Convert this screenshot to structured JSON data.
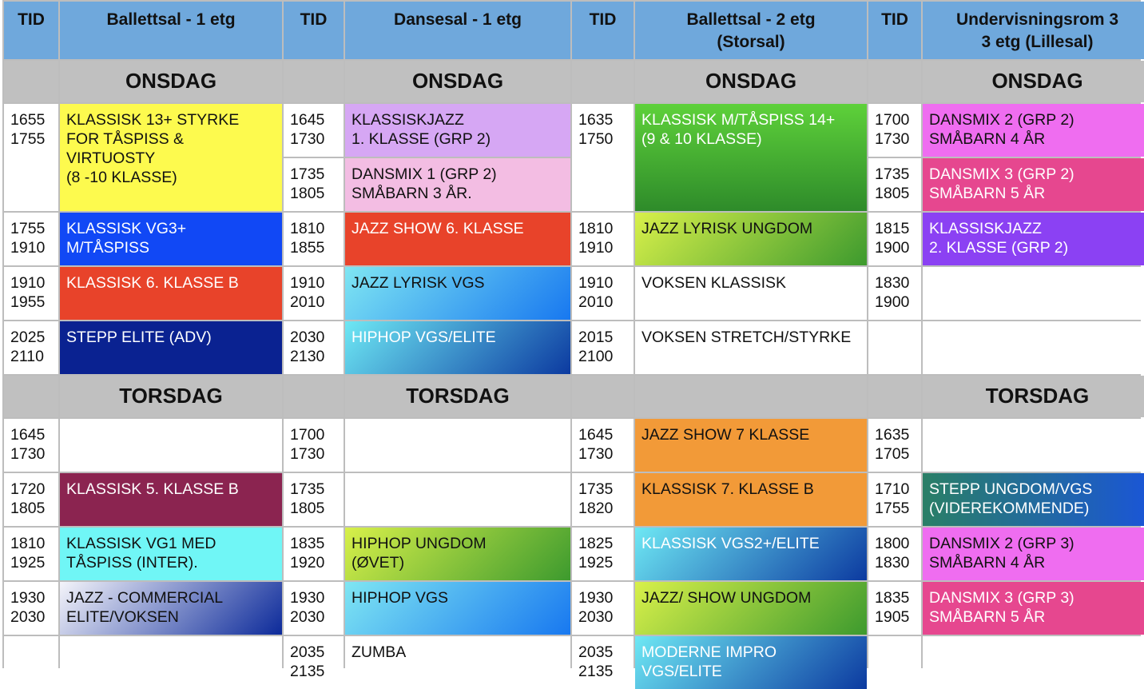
{
  "headers": [
    {
      "text": "TID"
    },
    {
      "text": "Ballettsal - 1 etg"
    },
    {
      "text": "TID"
    },
    {
      "text": "Dansesal - 1 etg"
    },
    {
      "text": "TID"
    },
    {
      "text": "Ballettsal - 2 etg\n(Storsal)"
    },
    {
      "text": "TID"
    },
    {
      "text": "Undervisningsrom 3\n3 etg (Lillesal)"
    }
  ],
  "days": {
    "wed": "ONSDAG",
    "thu": "TORSDAG"
  },
  "cells": [
    {
      "id": "w1-t",
      "text": "1655\n1755",
      "r": 3,
      "c": 1,
      "rs": 2
    },
    {
      "id": "w1-a",
      "text": "KLASSISK 13+  STYRKE\nFOR TÅSPISS &\nVIRTUOSTY\n(8 -10 KLASSE)",
      "r": 3,
      "c": 2,
      "rs": 2,
      "bg": "#fdfa4e"
    },
    {
      "id": "w1-t2",
      "text": "1645\n1730",
      "r": 3,
      "c": 3
    },
    {
      "id": "w1-b",
      "text": "KLASSISKJAZZ\n1. KLASSE  (GRP 2)",
      "r": 3,
      "c": 4,
      "bg": "#d6a7f4"
    },
    {
      "id": "w1-t3",
      "text": "1635\n1750",
      "r": 3,
      "c": 5,
      "rs": 2
    },
    {
      "id": "w1-c",
      "text": "KLASSISK M/TÅSPISS 14+\n(9 & 10 KLASSE)",
      "r": 3,
      "c": 6,
      "rs": 2,
      "bg": "linear-gradient(180deg,#5ed13a,#2e8b2a)",
      "w": 1
    },
    {
      "id": "w1-t4",
      "text": "1700\n1730",
      "r": 3,
      "c": 7
    },
    {
      "id": "w1-d",
      "text": "DANSMIX 2 (GRP 2)\nSMÅBARN 4 ÅR",
      "r": 3,
      "c": 8,
      "bg": "#ef6df0"
    },
    {
      "id": "w2-t2",
      "text": "1735\n1805",
      "r": 4,
      "c": 3
    },
    {
      "id": "w2-b",
      "text": "DANSMIX 1 (GRP 2)\nSMÅBARN 3 ÅR.",
      "r": 4,
      "c": 4,
      "bg": "#f3bde3"
    },
    {
      "id": "w2-t4",
      "text": "1735\n1805",
      "r": 4,
      "c": 7
    },
    {
      "id": "w2-d",
      "text": "DANSMIX 3  (GRP 2)\nSMÅBARN 5 ÅR",
      "r": 4,
      "c": 8,
      "bg": "#e6478f",
      "w": 1
    },
    {
      "id": "w3-t",
      "text": "1755\n1910",
      "r": 5,
      "c": 1
    },
    {
      "id": "w3-a",
      "text": "KLASSISK  VG3+\nM/TÅSPISS",
      "r": 5,
      "c": 2,
      "bg": "#1148f5",
      "w": 1
    },
    {
      "id": "w3-t2",
      "text": "1810\n1855",
      "r": 5,
      "c": 3
    },
    {
      "id": "w3-b",
      "text": "JAZZ SHOW 6. KLASSE",
      "r": 5,
      "c": 4,
      "bg": "#e8432a",
      "w": 1
    },
    {
      "id": "w3-t3",
      "text": "1810\n1910",
      "r": 5,
      "c": 5
    },
    {
      "id": "w3-c",
      "text": "JAZZ LYRISK UNGDOM",
      "r": 5,
      "c": 6,
      "bg": "linear-gradient(135deg,#d8f04a,#3d9a2e)"
    },
    {
      "id": "w3-t4",
      "text": "1815\n1900",
      "r": 5,
      "c": 7
    },
    {
      "id": "w3-d",
      "text": "KLASSISKJAZZ\n2. KLASSE  (GRP 2)",
      "r": 5,
      "c": 8,
      "bg": "#8b41f3",
      "w": 1
    },
    {
      "id": "w4-t",
      "text": "1910\n1955",
      "r": 6,
      "c": 1
    },
    {
      "id": "w4-a",
      "text": "KLASSISK 6. KLASSE B",
      "r": 6,
      "c": 2,
      "bg": "#e8432a",
      "w": 1
    },
    {
      "id": "w4-t2",
      "text": "1910\n2010",
      "r": 6,
      "c": 3
    },
    {
      "id": "w4-b",
      "text": "JAZZ LYRISK VGS",
      "r": 6,
      "c": 4,
      "bg": "linear-gradient(135deg,#7fe6f2,#1878f0)"
    },
    {
      "id": "w4-t3",
      "text": "1910\n2010",
      "r": 6,
      "c": 5
    },
    {
      "id": "w4-c",
      "text": "VOKSEN KLASSISK",
      "r": 6,
      "c": 6
    },
    {
      "id": "w4-t4",
      "text": "1830\n1900",
      "r": 6,
      "c": 7
    },
    {
      "id": "w4-d",
      "text": "",
      "r": 6,
      "c": 8
    },
    {
      "id": "w5-t",
      "text": "2025\n2110",
      "r": 7,
      "c": 1
    },
    {
      "id": "w5-a",
      "text": "STEPP ELITE (ADV)",
      "r": 7,
      "c": 2,
      "bg": "#0a2291",
      "w": 1
    },
    {
      "id": "w5-t2",
      "text": "2030\n2130",
      "r": 7,
      "c": 3
    },
    {
      "id": "w5-b",
      "text": "HIPHOP VGS/ELITE",
      "r": 7,
      "c": 4,
      "bg": "linear-gradient(135deg,#6ee8f4,#0c3aa0)",
      "w": 1
    },
    {
      "id": "w5-t3",
      "text": "2015\n2100",
      "r": 7,
      "c": 5
    },
    {
      "id": "w5-c",
      "text": "VOKSEN STRETCH/STYRKE",
      "r": 7,
      "c": 6
    },
    {
      "id": "w5-t4",
      "text": "",
      "r": 7,
      "c": 7
    },
    {
      "id": "w5-d",
      "text": "",
      "r": 7,
      "c": 8
    },
    {
      "id": "t1-t",
      "text": "1645\n1730",
      "r": 9,
      "c": 1
    },
    {
      "id": "t1-a",
      "text": "",
      "r": 9,
      "c": 2
    },
    {
      "id": "t1-t2",
      "text": "1700\n1730",
      "r": 9,
      "c": 3
    },
    {
      "id": "t1-b",
      "text": "",
      "r": 9,
      "c": 4
    },
    {
      "id": "t1-t3",
      "text": "1645\n1730",
      "r": 9,
      "c": 5
    },
    {
      "id": "t1-c",
      "text": "JAZZ SHOW 7  KLASSE",
      "r": 9,
      "c": 6,
      "bg": "#f29a38"
    },
    {
      "id": "t1-t4",
      "text": "1635\n1705",
      "r": 9,
      "c": 7
    },
    {
      "id": "t1-d",
      "text": "",
      "r": 9,
      "c": 8
    },
    {
      "id": "t2-t",
      "text": "1720\n1805",
      "r": 10,
      "c": 1
    },
    {
      "id": "t2-a",
      "text": "KLASSISK  5. KLASSE B",
      "r": 10,
      "c": 2,
      "bg": "#8b2450",
      "w": 1
    },
    {
      "id": "t2-t2",
      "text": "1735\n1805",
      "r": 10,
      "c": 3
    },
    {
      "id": "t2-b",
      "text": "",
      "r": 10,
      "c": 4
    },
    {
      "id": "t2-t3",
      "text": "1735\n1820",
      "r": 10,
      "c": 5
    },
    {
      "id": "t2-c",
      "text": "KLASSISK 7. KLASSE B",
      "r": 10,
      "c": 6,
      "bg": "#f29a38"
    },
    {
      "id": "t2-t4",
      "text": "1710\n1755",
      "r": 10,
      "c": 7
    },
    {
      "id": "t2-d",
      "text": "STEPP UNGDOM/VGS\n(VIDEREKOMMENDE)",
      "r": 10,
      "c": 8,
      "bg": "linear-gradient(90deg,#2a7f66,#1a55d8)",
      "w": 1
    },
    {
      "id": "t3-t",
      "text": "1810\n1925",
      "r": 11,
      "c": 1
    },
    {
      "id": "t3-a",
      "text": "KLASSISK VG1 MED\nTÅSPISS (INTER).",
      "r": 11,
      "c": 2,
      "bg": "#70f6f6"
    },
    {
      "id": "t3-t2",
      "text": "1835\n1920",
      "r": 11,
      "c": 3
    },
    {
      "id": "t3-b",
      "text": "HIPHOP UNGDOM\n(ØVET)",
      "r": 11,
      "c": 4,
      "bg": "linear-gradient(135deg,#d8f04a,#3d9a2e)"
    },
    {
      "id": "t3-t3",
      "text": "1825\n1925",
      "r": 11,
      "c": 5
    },
    {
      "id": "t3-c",
      "text": "KLASSISK VGS2+/ELITE",
      "r": 11,
      "c": 6,
      "bg": "linear-gradient(135deg,#6ee8f4,#0c3aa0)",
      "w": 1
    },
    {
      "id": "t3-t4",
      "text": "1800\n1830",
      "r": 11,
      "c": 7
    },
    {
      "id": "t3-d",
      "text": "DANSMIX 2 (GRP 3)\nSMÅBARN 4 ÅR",
      "r": 11,
      "c": 8,
      "bg": "#ef6df0"
    },
    {
      "id": "t4-t",
      "text": "1930\n2030",
      "r": 12,
      "c": 1
    },
    {
      "id": "t4-a",
      "text": "JAZZ - COMMERCIAL\nELITE/VOKSEN",
      "r": 12,
      "c": 2,
      "bg": "linear-gradient(135deg,#f4f4fa,#0c2a9a)"
    },
    {
      "id": "t4-t2",
      "text": "1930\n2030",
      "r": 12,
      "c": 3
    },
    {
      "id": "t4-b",
      "text": "HIPHOP VGS",
      "r": 12,
      "c": 4,
      "bg": "linear-gradient(135deg,#7fe6f2,#1878f0)"
    },
    {
      "id": "t4-t3",
      "text": "1930\n2030",
      "r": 12,
      "c": 5
    },
    {
      "id": "t4-c",
      "text": "JAZZ/ SHOW UNGDOM",
      "r": 12,
      "c": 6,
      "bg": "linear-gradient(135deg,#d8f04a,#3d9a2e)"
    },
    {
      "id": "t4-t4",
      "text": "1835\n1905",
      "r": 12,
      "c": 7
    },
    {
      "id": "t4-d",
      "text": "DANSMIX 3  (GRP 3)\nSMÅBARN 5 ÅR",
      "r": 12,
      "c": 8,
      "bg": "#e6478f",
      "w": 1
    },
    {
      "id": "t5-t",
      "text": "",
      "r": 13,
      "c": 1
    },
    {
      "id": "t5-a",
      "text": "",
      "r": 13,
      "c": 2
    },
    {
      "id": "t5-t2",
      "text": "2035\n2135",
      "r": 13,
      "c": 3
    },
    {
      "id": "t5-b",
      "text": "ZUMBA",
      "r": 13,
      "c": 4
    },
    {
      "id": "t5-t3",
      "text": "2035\n2135",
      "r": 13,
      "c": 5
    },
    {
      "id": "t5-c",
      "text": "MODERNE IMPRO\nVGS/ELITE",
      "r": 13,
      "c": 6,
      "bg": "linear-gradient(135deg,#6ee8f4,#0c3aa0)",
      "w": 1
    },
    {
      "id": "t5-t4",
      "text": "",
      "r": 13,
      "c": 7
    },
    {
      "id": "t5-d",
      "text": "",
      "r": 13,
      "c": 8
    }
  ],
  "dayRows": [
    {
      "row": 2,
      "labels": [
        "",
        "wed",
        "",
        "wed",
        "",
        "wed",
        "",
        "wed"
      ]
    },
    {
      "row": 8,
      "labels": [
        "",
        "thu",
        "",
        "thu",
        "",
        "",
        "",
        "thu"
      ]
    }
  ]
}
